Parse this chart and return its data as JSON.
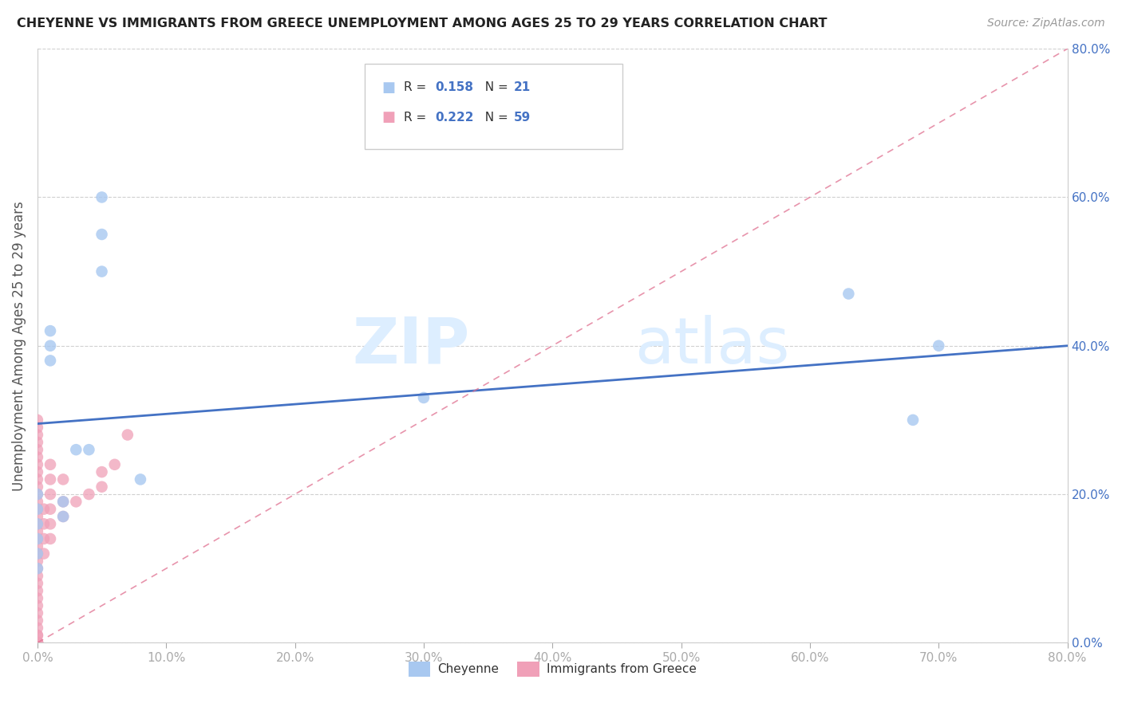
{
  "title": "CHEYENNE VS IMMIGRANTS FROM GREECE UNEMPLOYMENT AMONG AGES 25 TO 29 YEARS CORRELATION CHART",
  "source": "Source: ZipAtlas.com",
  "ylabel": "Unemployment Among Ages 25 to 29 years",
  "xlim": [
    0,
    0.8
  ],
  "ylim": [
    0,
    0.8
  ],
  "legend_label1": "Cheyenne",
  "legend_label2": "Immigrants from Greece",
  "r1": "0.158",
  "n1": "21",
  "r2": "0.222",
  "n2": "59",
  "blue_color": "#A8C8F0",
  "pink_color": "#F0A0B8",
  "trend_blue": "#4472C4",
  "trend_pink": "#E07090",
  "watermark_zip": "ZIP",
  "watermark_atlas": "atlas",
  "cheyenne_x": [
    0.0,
    0.0,
    0.0,
    0.0,
    0.0,
    0.0,
    0.01,
    0.01,
    0.01,
    0.02,
    0.02,
    0.03,
    0.04,
    0.05,
    0.05,
    0.05,
    0.08,
    0.3,
    0.63,
    0.68,
    0.7
  ],
  "cheyenne_y": [
    0.1,
    0.12,
    0.14,
    0.16,
    0.18,
    0.2,
    0.38,
    0.4,
    0.42,
    0.17,
    0.19,
    0.26,
    0.26,
    0.5,
    0.55,
    0.6,
    0.22,
    0.33,
    0.47,
    0.3,
    0.4
  ],
  "greece_x": [
    0.0,
    0.0,
    0.0,
    0.0,
    0.0,
    0.0,
    0.0,
    0.0,
    0.0,
    0.0,
    0.0,
    0.0,
    0.0,
    0.0,
    0.0,
    0.0,
    0.0,
    0.0,
    0.0,
    0.0,
    0.0,
    0.0,
    0.0,
    0.0,
    0.0,
    0.0,
    0.0,
    0.0,
    0.0,
    0.0,
    0.0,
    0.0,
    0.0,
    0.0,
    0.0,
    0.0,
    0.0,
    0.0,
    0.0,
    0.0,
    0.005,
    0.005,
    0.005,
    0.005,
    0.01,
    0.01,
    0.01,
    0.01,
    0.01,
    0.01,
    0.02,
    0.02,
    0.02,
    0.03,
    0.04,
    0.05,
    0.05,
    0.06,
    0.07
  ],
  "greece_y": [
    0.0,
    0.0,
    0.0,
    0.0,
    0.0,
    0.0,
    0.0,
    0.0,
    0.0,
    0.01,
    0.01,
    0.02,
    0.03,
    0.04,
    0.05,
    0.06,
    0.07,
    0.08,
    0.09,
    0.1,
    0.11,
    0.12,
    0.13,
    0.14,
    0.15,
    0.16,
    0.17,
    0.18,
    0.19,
    0.2,
    0.21,
    0.22,
    0.23,
    0.24,
    0.25,
    0.26,
    0.27,
    0.28,
    0.29,
    0.3,
    0.12,
    0.14,
    0.16,
    0.18,
    0.14,
    0.16,
    0.18,
    0.2,
    0.22,
    0.24,
    0.17,
    0.19,
    0.22,
    0.19,
    0.2,
    0.21,
    0.23,
    0.24,
    0.28
  ],
  "blue_trend_x0": 0.0,
  "blue_trend_y0": 0.295,
  "blue_trend_x1": 0.8,
  "blue_trend_y1": 0.4,
  "pink_trend_x0": 0.0,
  "pink_trend_y0": 0.0,
  "pink_trend_x1": 0.8,
  "pink_trend_y1": 0.8
}
